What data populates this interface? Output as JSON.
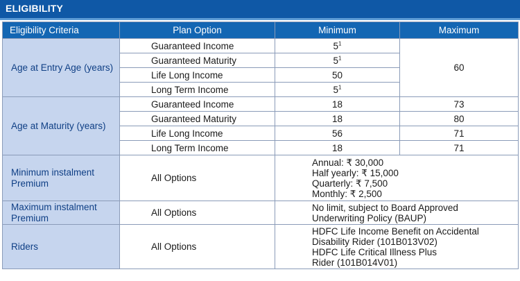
{
  "header": {
    "title": "ELIGIBILITY"
  },
  "table": {
    "columns": [
      "Eligibility Criteria",
      "Plan Option",
      "Minimum",
      "Maximum"
    ],
    "age_entry": {
      "criteria": "Age at Entry Age (years)",
      "rows": [
        {
          "plan": "Guaranteed Income",
          "min": "5",
          "min_sup": "1"
        },
        {
          "plan": "Guaranteed Maturity",
          "min": "5",
          "min_sup": "1"
        },
        {
          "plan": "Life Long Income",
          "min": "50",
          "min_sup": ""
        },
        {
          "plan": "Long Term Income",
          "min": "5",
          "min_sup": "1"
        }
      ],
      "max": "60"
    },
    "age_maturity": {
      "criteria": "Age at Maturity (years)",
      "rows": [
        {
          "plan": "Guaranteed Income",
          "min": "18",
          "max": "73"
        },
        {
          "plan": "Guaranteed Maturity",
          "min": "18",
          "max": "80"
        },
        {
          "plan": "Life Long Income",
          "min": "56",
          "max": "71"
        },
        {
          "plan": "Long Term Income",
          "min": "18",
          "max": "71"
        }
      ]
    },
    "min_premium": {
      "criteria_line1": "Minimum instalment",
      "criteria_line2": "Premium",
      "plan": "All Options",
      "lines": [
        "Annual: ₹ 30,000",
        "Half yearly: ₹ 15,000",
        "Quarterly: ₹ 7,500",
        "Monthly: ₹ 2,500"
      ]
    },
    "max_premium": {
      "criteria_line1": "Maximum instalment",
      "criteria_line2": "Premium",
      "plan": "All Options",
      "lines": [
        "No limit, subject to Board Approved",
        "Underwriting Policy (BAUP)"
      ]
    },
    "riders": {
      "criteria": "Riders",
      "plan": "All Options",
      "lines": [
        "HDFC Life Income Benefit on Accidental",
        "Disability Rider (101B013V02)",
        "HDFC Life Critical Illness Plus",
        "Rider (101B014V01)"
      ]
    }
  }
}
